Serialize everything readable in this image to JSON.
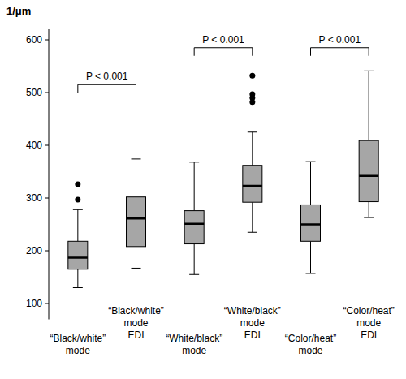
{
  "chart_data": {
    "type": "box",
    "y_label": "1/μm",
    "categories": [
      "“Black/white”\nmode",
      "“Black/white”\nmode\nEDI",
      "“White/black”\nmode",
      "“White/black”\nmode\nEDI",
      "“Color/heat”\nmode",
      "“Color/heat”\nmode\nEDI"
    ],
    "boxes": [
      {
        "min": 130,
        "q1": 165,
        "median": 187,
        "q3": 218,
        "max": 278,
        "outliers": [
          297,
          326
        ]
      },
      {
        "min": 167,
        "q1": 208,
        "median": 261,
        "q3": 302,
        "max": 374,
        "outliers": []
      },
      {
        "min": 155,
        "q1": 213,
        "median": 251,
        "q3": 276,
        "max": 368,
        "outliers": []
      },
      {
        "min": 235,
        "q1": 292,
        "median": 323,
        "q3": 362,
        "max": 425,
        "outliers": [
          482,
          490,
          497,
          532
        ]
      },
      {
        "min": 157,
        "q1": 218,
        "median": 250,
        "q3": 287,
        "max": 369,
        "outliers": []
      },
      {
        "min": 263,
        "q1": 293,
        "median": 342,
        "q3": 409,
        "max": 541,
        "outliers": []
      }
    ],
    "color": "#a6a6a6",
    "ylim": [
      70,
      620
    ],
    "yticks": [
      100,
      200,
      300,
      400,
      500,
      600
    ],
    "grid": false,
    "annotations": [
      {
        "text": "P < 0.001",
        "between": [
          0,
          1
        ],
        "y": 515
      },
      {
        "text": "P < 0.001",
        "between": [
          2,
          3
        ],
        "y": 585
      },
      {
        "text": "P < 0.001",
        "between": [
          4,
          5
        ],
        "y": 585
      }
    ]
  }
}
